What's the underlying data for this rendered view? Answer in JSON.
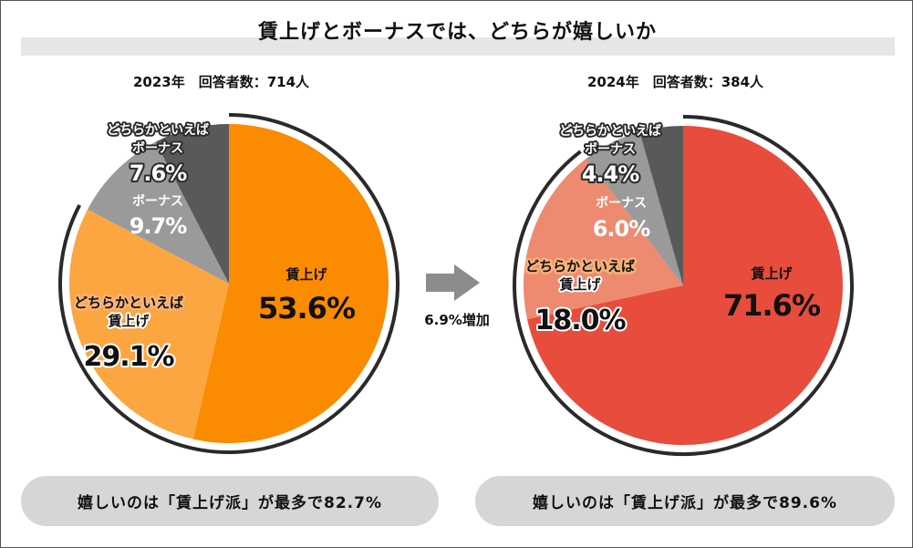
{
  "title": "賃上げとボーナスでは、どちらが嬉しいか",
  "arrow_label": "6.9%増加",
  "charts": [
    {
      "subtitle": "2023年　回答者数：714人",
      "summary": "嬉しいのは「賃上げ派」が最多で82.7%",
      "slices": [
        {
          "line1": "",
          "line2": "賃上げ",
          "pct": "53.6%",
          "color": "#fb8b00"
        },
        {
          "line1": "どちらかといえば",
          "line2": "賃上げ",
          "pct": "29.1%",
          "color": "#fba640"
        },
        {
          "line1": "",
          "line2": "ボーナス",
          "pct": "9.7%",
          "color": "#9a9a9a"
        },
        {
          "line1": "どちらかといえば",
          "line2": "ボーナス",
          "pct": "7.6%",
          "color": "#595959"
        }
      ]
    },
    {
      "subtitle": "2024年　回答者数：384人",
      "summary": "嬉しいのは「賃上げ派」が最多で89.6%",
      "slices": [
        {
          "line1": "",
          "line2": "賃上げ",
          "pct": "71.6%",
          "color": "#e74c3c"
        },
        {
          "line1": "どちらかといえば",
          "line2": "賃上げ",
          "pct": "18.0%",
          "color": "#ed8a70"
        },
        {
          "line1": "",
          "line2": "ボーナス",
          "pct": "6.0%",
          "color": "#9a9a9a"
        },
        {
          "line1": "どちらかといえば",
          "line2": "ボーナス",
          "pct": "4.4%",
          "color": "#595959"
        }
      ]
    }
  ],
  "chart_data": [
    {
      "type": "pie",
      "title": "2023年　回答者数：714人",
      "categories": [
        "賃上げ",
        "どちらかといえば賃上げ",
        "ボーナス",
        "どちらかといえばボーナス"
      ],
      "values": [
        53.6,
        29.1,
        9.7,
        7.6
      ]
    },
    {
      "type": "pie",
      "title": "2024年　回答者数：384人",
      "categories": [
        "賃上げ",
        "どちらかといえば賃上げ",
        "ボーナス",
        "どちらかといえばボーナス"
      ],
      "values": [
        71.6,
        18.0,
        6.0,
        4.4
      ]
    }
  ]
}
